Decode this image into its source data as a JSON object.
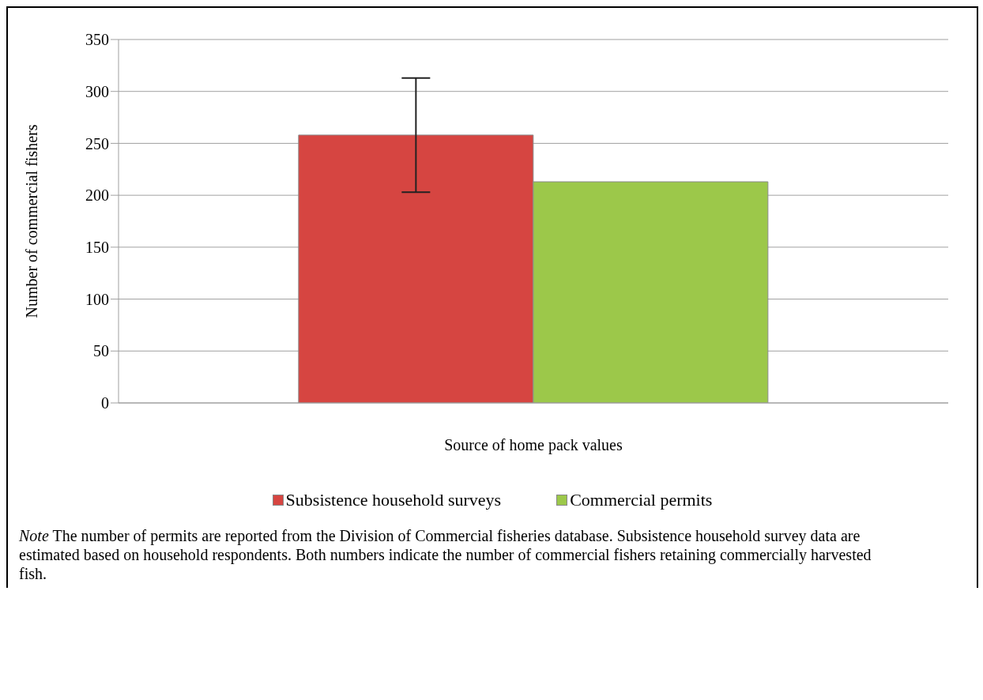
{
  "chart_data": {
    "type": "bar",
    "xlabel": "Source of home pack values",
    "ylabel": "Number of commercial fishers",
    "categories": [
      null
    ],
    "series": [
      {
        "name": "Subsistence household surveys",
        "color": "#d64541",
        "values": [
          258
        ],
        "errors": [
          [
            203,
            313
          ]
        ]
      },
      {
        "name": "Commercial permits",
        "color": "#9cc84a",
        "values": [
          213
        ]
      }
    ],
    "ylim": [
      0,
      350
    ],
    "yticks": [
      0,
      50,
      100,
      150,
      200,
      250,
      300,
      350
    ],
    "grid": "y",
    "legend": "bottom",
    "annotations": [
      "Note The number of permits are reported from the Division of Commercial fisheries database. Subsistence household survey data are estimated based on household respondents. Both numbers indicate the number of commercial fishers retaining commercially harvested fish."
    ]
  }
}
